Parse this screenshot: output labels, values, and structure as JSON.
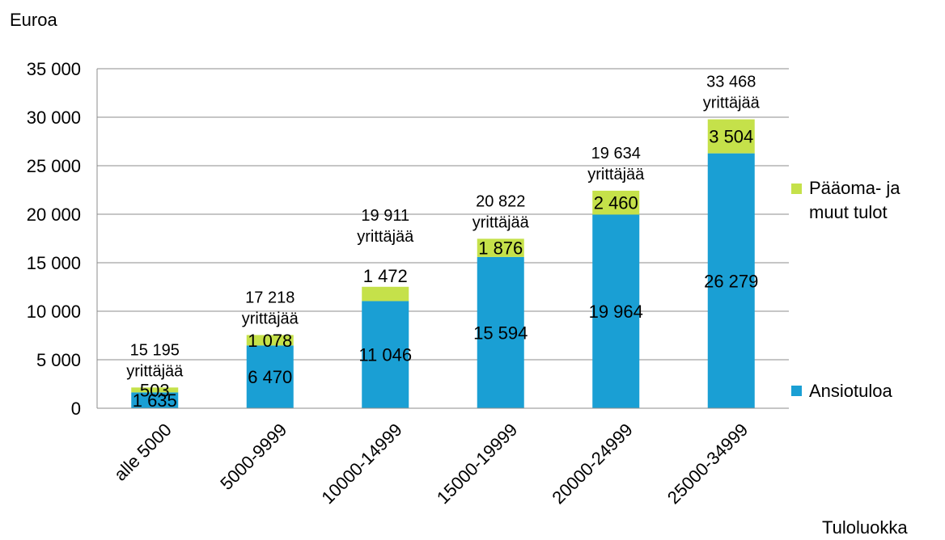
{
  "chart_data": {
    "type": "bar",
    "stacked": true,
    "ylabel": "Euroa",
    "xlabel": "Tuloluokka",
    "ylim": [
      0,
      35000
    ],
    "yticks": [
      0,
      5000,
      10000,
      15000,
      20000,
      25000,
      30000,
      35000
    ],
    "ytick_labels": [
      "0",
      "5 000",
      "10 000",
      "15 000",
      "20 000",
      "25 000",
      "30 000",
      "35 000"
    ],
    "grid": true,
    "legend_position": "right",
    "categories": [
      "alle 5000",
      "5000-9999",
      "10000-14999",
      "15000-19999",
      "20000-24999",
      "25000-34999"
    ],
    "series": [
      {
        "name": "Ansiotuloa",
        "color": "#1a9fd4",
        "values": [
          1635,
          6470,
          11046,
          15594,
          19964,
          26279
        ],
        "labels": [
          "1 635",
          "6 470",
          "11 046",
          "15 594",
          "19 964",
          "26 279"
        ]
      },
      {
        "name": "Pääoma- ja muut tulot",
        "color": "#c5e14a",
        "values": [
          503,
          1078,
          1472,
          1876,
          2460,
          3504
        ],
        "labels": [
          "503",
          "1 078",
          "1 472",
          "1 876",
          "2 460",
          "3 504"
        ]
      }
    ],
    "annotations": [
      [
        "15 195",
        "yrittäjää"
      ],
      [
        "17 218",
        "yrittäjää"
      ],
      [
        "19 911",
        "yrittäjää"
      ],
      [
        "20 822",
        "yrittäjää"
      ],
      [
        "19 634",
        "yrittäjää"
      ],
      [
        "33 468",
        "yrittäjää"
      ]
    ],
    "legend": {
      "paaoma_line1": "Pääoma- ja",
      "paaoma_line2": "muut tulot",
      "ansio": "Ansiotuloa"
    }
  }
}
